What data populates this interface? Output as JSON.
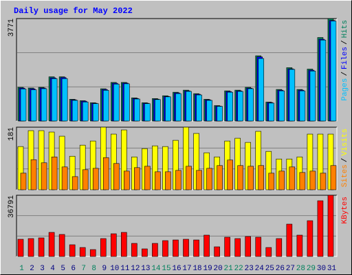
{
  "chart_data": [
    {
      "type": "bar",
      "title": "Daily usage for May 2022",
      "categories": [
        "1",
        "2",
        "3",
        "4",
        "5",
        "6",
        "7",
        "8",
        "9",
        "10",
        "11",
        "12",
        "13",
        "14",
        "15",
        "16",
        "17",
        "18",
        "19",
        "20",
        "21",
        "22",
        "23",
        "24",
        "25",
        "26",
        "27",
        "28",
        "29",
        "30",
        "31"
      ],
      "category_colors": [
        "#00805c",
        "#000080",
        "#000080",
        "#000080",
        "#000080",
        "#000080",
        "#00805c",
        "#00805c",
        "#000080",
        "#000080",
        "#000080",
        "#000080",
        "#000080",
        "#00805c",
        "#00805c",
        "#000080",
        "#000080",
        "#000080",
        "#000080",
        "#000080",
        "#00805c",
        "#00805c",
        "#000080",
        "#000080",
        "#000080",
        "#000080",
        "#000080",
        "#00805c",
        "#00805c",
        "#000080",
        "#000080"
      ],
      "legend_separator": "/",
      "ylim": [
        0,
        3771
      ],
      "yticks": [
        3771
      ],
      "series": [
        {
          "name": "Hits",
          "color": "#00805c",
          "values": [
            1240,
            1214,
            1240,
            1627,
            1627,
            800,
            749,
            672,
            1188,
            1420,
            1420,
            852,
            672,
            826,
            930,
            1059,
            1136,
            1007,
            800,
            568,
            1111,
            1136,
            1240,
            2402,
            697,
            1162,
            1963,
            1162,
            1911,
            3074,
            3771
          ]
        },
        {
          "name": "Files",
          "color": "#0000ff",
          "values": [
            1210,
            1185,
            1215,
            1590,
            1600,
            780,
            730,
            655,
            1160,
            1390,
            1395,
            830,
            655,
            805,
            905,
            1035,
            1110,
            985,
            780,
            550,
            1085,
            1110,
            1210,
            2360,
            680,
            1135,
            1920,
            1135,
            1870,
            3010,
            3700
          ]
        },
        {
          "name": "Pages",
          "color": "#00c0ff",
          "values": [
            1180,
            1150,
            1190,
            1560,
            1560,
            760,
            700,
            640,
            1130,
            1360,
            1370,
            810,
            640,
            790,
            890,
            1010,
            1090,
            960,
            760,
            540,
            1060,
            1090,
            1190,
            2300,
            660,
            1110,
            1900,
            1110,
            1840,
            2980,
            3680
          ]
        }
      ]
    },
    {
      "type": "bar",
      "ylim": [
        0,
        181
      ],
      "yticks": [
        181
      ],
      "series": [
        {
          "name": "Visits",
          "color": "#ffff00",
          "values": [
            125,
            171,
            171,
            167,
            155,
            97,
            129,
            141,
            181,
            161,
            173,
            95,
            119,
            127,
            125,
            143,
            181,
            163,
            107,
            95,
            141,
            149,
            137,
            169,
            111,
            89,
            89,
            95,
            161,
            161,
            161
          ]
        },
        {
          "name": "Sites",
          "color": "#ff8000",
          "values": [
            48,
            87,
            78,
            95,
            66,
            38,
            58,
            62,
            93,
            76,
            54,
            64,
            68,
            52,
            52,
            56,
            68,
            56,
            62,
            70,
            86,
            70,
            68,
            70,
            48,
            54,
            66,
            50,
            54,
            48,
            70
          ]
        }
      ]
    },
    {
      "type": "bar",
      "ylim": [
        0,
        36791
      ],
      "yticks": [
        36791
      ],
      "series": [
        {
          "name": "KBytes",
          "color": "#ff0000",
          "values": [
            10335,
            10748,
            11161,
            14468,
            13228,
            7027,
            5374,
            4134,
            10748,
            13642,
            14468,
            7854,
            4547,
            7854,
            9508,
            9921,
            10335,
            9921,
            12815,
            5787,
            11575,
            10748,
            11988,
            11575,
            5374,
            10748,
            19429,
            12815,
            21496,
            33484,
            36791
          ]
        }
      ]
    }
  ]
}
